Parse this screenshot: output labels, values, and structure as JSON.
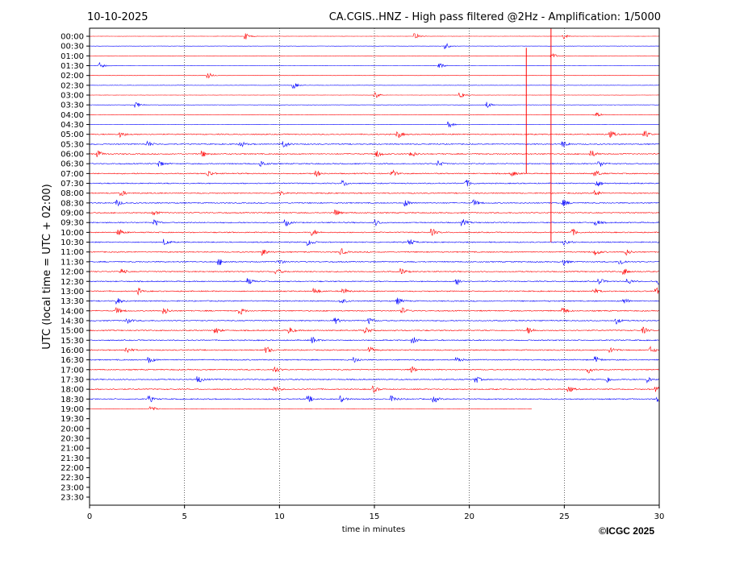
{
  "chart_data": {
    "type": "line",
    "title_left": "10-10-2025",
    "title": "CA.CGIS..HNZ - High pass filtered @2Hz - Amplification: 1/5000",
    "xlabel": "time in minutes",
    "ylabel": "UTC (local time = UTC + 02:00)",
    "xlim": [
      0,
      30
    ],
    "xticks": [
      "0",
      "5",
      "10",
      "15",
      "20",
      "25",
      "30"
    ],
    "xtick_values": [
      0,
      5,
      10,
      15,
      20,
      25,
      30
    ],
    "grid": "vertical dotted at x ticks",
    "row_labels": [
      "00:00",
      "00:30",
      "01:00",
      "01:30",
      "02:00",
      "02:30",
      "03:00",
      "03:30",
      "04:00",
      "04:30",
      "05:00",
      "05:30",
      "06:00",
      "06:30",
      "07:00",
      "07:30",
      "08:00",
      "08:30",
      "09:00",
      "09:30",
      "10:00",
      "10:30",
      "11:00",
      "11:30",
      "12:00",
      "12:30",
      "13:00",
      "13:30",
      "14:00",
      "14:30",
      "15:00",
      "15:30",
      "16:00",
      "16:30",
      "17:00",
      "17:30",
      "18:00",
      "18:30",
      "19:00",
      "19:30",
      "20:00",
      "20:30",
      "21:00",
      "21:30",
      "22:00",
      "22:30",
      "23:00",
      "23:30"
    ],
    "series_colors": {
      "hour": "#ff0000",
      "half_hour": "#0000ff"
    },
    "traces": [
      {
        "row": "00:00",
        "noise": 0.15,
        "events": [
          8.3,
          17.2,
          25
        ]
      },
      {
        "row": "00:30",
        "noise": 0.15,
        "events": [
          18.8
        ]
      },
      {
        "row": "01:00",
        "noise": 0.15,
        "events": [
          24.4
        ]
      },
      {
        "row": "01:30",
        "noise": 0.15,
        "events": [
          0.6,
          18.5
        ]
      },
      {
        "row": "02:00",
        "noise": 0.15,
        "events": [
          6.3
        ]
      },
      {
        "row": "02:30",
        "noise": 0.15,
        "events": [
          10.8
        ]
      },
      {
        "row": "03:00",
        "noise": 0.15,
        "events": [
          15.1,
          19.6
        ]
      },
      {
        "row": "03:30",
        "noise": 0.2,
        "events": [
          2.5,
          21
        ]
      },
      {
        "row": "04:00",
        "noise": 0.2,
        "events": [
          26.7
        ]
      },
      {
        "row": "04:30",
        "noise": 0.2,
        "events": [
          19
        ]
      },
      {
        "row": "05:00",
        "noise": 0.6,
        "events": [
          1.7,
          16.3,
          27.5,
          29.3
        ]
      },
      {
        "row": "05:30",
        "noise": 0.6,
        "events": [
          3.1,
          8,
          10.3,
          25
        ]
      },
      {
        "row": "06:00",
        "noise": 0.6,
        "events": [
          0.5,
          6,
          15.2,
          17,
          26.5
        ]
      },
      {
        "row": "06:30",
        "noise": 0.6,
        "events": [
          3.7,
          9.1,
          18.4,
          26.9
        ]
      },
      {
        "row": "07:00",
        "noise": 0.6,
        "events": [
          6.3,
          12,
          16,
          22.3,
          26.7
        ]
      },
      {
        "row": "07:30",
        "noise": 0.6,
        "events": [
          13.4,
          19.9,
          26.8
        ]
      },
      {
        "row": "08:00",
        "noise": 0.6,
        "events": [
          1.7,
          10,
          26.7
        ]
      },
      {
        "row": "08:30",
        "noise": 0.6,
        "events": [
          1.5,
          16.7,
          20.3,
          25
        ]
      },
      {
        "row": "09:00",
        "noise": 0.6,
        "events": [
          3.4,
          13
        ]
      },
      {
        "row": "09:30",
        "noise": 0.6,
        "events": [
          3.5,
          10.4,
          15.1,
          19.7,
          26.7
        ]
      },
      {
        "row": "10:00",
        "noise": 0.6,
        "events": [
          1.6,
          11.8,
          18.1,
          25.5
        ]
      },
      {
        "row": "10:30",
        "noise": 0.6,
        "events": [
          4,
          11.6,
          16.9,
          25.1
        ]
      },
      {
        "row": "11:00",
        "noise": 0.6,
        "events": [
          9.2,
          13.3,
          26.7,
          28.3
        ]
      },
      {
        "row": "11:30",
        "noise": 0.6,
        "events": [
          6.9,
          10,
          25,
          28
        ]
      },
      {
        "row": "12:00",
        "noise": 0.6,
        "events": [
          1.7,
          9.9,
          16.5,
          28.2
        ]
      },
      {
        "row": "12:30",
        "noise": 0.6,
        "events": [
          8.4,
          19.4,
          26.9,
          28.4,
          30
        ]
      },
      {
        "row": "13:00",
        "noise": 0.6,
        "events": [
          2.6,
          11.9,
          13.4,
          26.6,
          29.9
        ]
      },
      {
        "row": "13:30",
        "noise": 0.6,
        "events": [
          1.5,
          13.3,
          16.3,
          28.2
        ]
      },
      {
        "row": "14:00",
        "noise": 0.6,
        "events": [
          1.5,
          4,
          8,
          16.5,
          25
        ]
      },
      {
        "row": "14:30",
        "noise": 0.6,
        "events": [
          2,
          13,
          14.8,
          27.8
        ]
      },
      {
        "row": "15:00",
        "noise": 0.6,
        "events": [
          6.7,
          10.6,
          14.6,
          23.2,
          29.2
        ]
      },
      {
        "row": "15:30",
        "noise": 0.6,
        "events": [
          11.8,
          17.1
        ]
      },
      {
        "row": "16:00",
        "noise": 0.6,
        "events": [
          2,
          9.4,
          14.8,
          27.5,
          29.6
        ]
      },
      {
        "row": "16:30",
        "noise": 0.6,
        "events": [
          3.2,
          14,
          19.4,
          26.7
        ]
      },
      {
        "row": "17:00",
        "noise": 0.6,
        "events": [
          9.8,
          17,
          26.3
        ]
      },
      {
        "row": "17:30",
        "noise": 0.6,
        "events": [
          5.8,
          20.4,
          27.3,
          29.4
        ]
      },
      {
        "row": "18:00",
        "noise": 0.6,
        "events": [
          9.8,
          15,
          25.3,
          29.9
        ]
      },
      {
        "row": "18:30",
        "noise": 0.6,
        "events": [
          3.2,
          11.6,
          13.3,
          16,
          18.2,
          30
        ]
      },
      {
        "row": "19:00",
        "noise": 0.15,
        "end": 23.3,
        "events": [
          3.3
        ]
      }
    ],
    "spikes": [
      {
        "x": 24.3,
        "from": "00:00",
        "to": "10:30"
      },
      {
        "x": 23.0,
        "from": "01:00",
        "to": "07:00"
      }
    ]
  },
  "footer": {
    "copyright": "©ICGC 2025"
  }
}
